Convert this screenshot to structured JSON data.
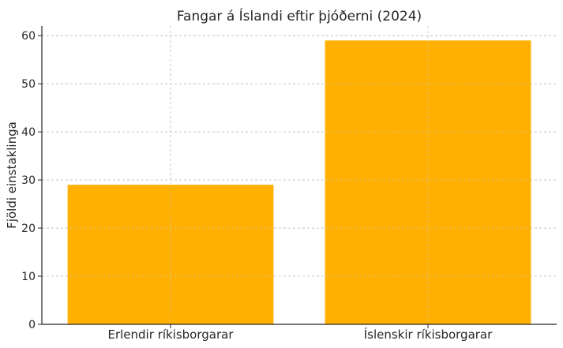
{
  "chart_data": {
    "type": "bar",
    "title": "Fangar á Íslandi eftir þjóðerni (2024)",
    "xlabel": "",
    "ylabel": "Fjöldi einstaklinga",
    "categories": [
      "Erlendir ríkisborgarar",
      "Íslenskir ríkisborgarar"
    ],
    "values": [
      29,
      59
    ],
    "ylim": [
      0,
      62
    ],
    "yticks": [
      0,
      10,
      20,
      30,
      40,
      50,
      60
    ],
    "grid": true,
    "bar_color": "#FFB000",
    "grid_color": "#c8c8c8",
    "axis_color": "#262626"
  }
}
